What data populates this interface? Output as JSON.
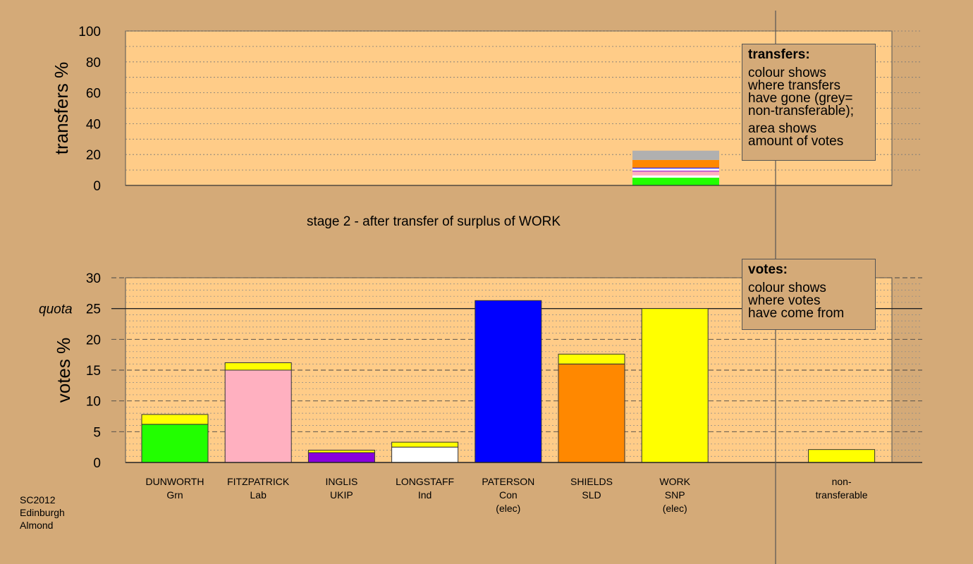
{
  "chart_data": [
    {
      "type": "bar",
      "stacked": true,
      "ylabel": "transfers %",
      "ylim": [
        0,
        100
      ],
      "yticks": [
        0,
        20,
        40,
        60,
        80,
        100
      ],
      "grid": "dotted",
      "bars": [
        {
          "category": "WORK",
          "segments": [
            {
              "value": 5,
              "color": "#22ff00"
            },
            {
              "value": 1.5,
              "color": "#ffffff"
            },
            {
              "value": 2.5,
              "color": "#ffb0c0"
            },
            {
              "value": 0.5,
              "color": "#8800dd"
            },
            {
              "value": 1.5,
              "color": "#ffffff"
            },
            {
              "value": 0.5,
              "color": "#0000ff"
            },
            {
              "value": 5,
              "color": "#ff8800"
            },
            {
              "value": 6,
              "color": "#b0b0b0"
            }
          ]
        }
      ],
      "legend": {
        "title": "transfers:",
        "paragraphs": [
          [
            "colour shows",
            "where transfers",
            "have gone (grey=",
            "non-transferable);"
          ],
          [
            "area shows",
            "amount of votes"
          ]
        ]
      }
    },
    {
      "type": "bar",
      "stacked": true,
      "title": "stage 2 - after transfer of surplus of WORK",
      "ylabel": "votes %",
      "ylim": [
        0,
        30
      ],
      "yticks": [
        0,
        5,
        10,
        15,
        20,
        25,
        30
      ],
      "quota": {
        "label": "quota",
        "value": 25
      },
      "categories": [
        {
          "lines": [
            "DUNWORTH",
            "Grn"
          ]
        },
        {
          "lines": [
            "FITZPATRICK",
            "Lab"
          ]
        },
        {
          "lines": [
            "INGLIS",
            "UKIP"
          ]
        },
        {
          "lines": [
            "LONGSTAFF",
            "Ind"
          ]
        },
        {
          "lines": [
            "PATERSON",
            "Con",
            "(elec)"
          ]
        },
        {
          "lines": [
            "SHIELDS",
            "SLD"
          ]
        },
        {
          "lines": [
            "WORK",
            "SNP",
            "(elec)"
          ]
        },
        {
          "lines": [
            "non-",
            "transferable"
          ]
        }
      ],
      "bars": [
        {
          "slot": 0,
          "segments": [
            {
              "value": 6.2,
              "color": "#22ff00"
            },
            {
              "value": 1.6,
              "color": "#ffff00"
            }
          ]
        },
        {
          "slot": 1,
          "segments": [
            {
              "value": 15.0,
              "color": "#ffb0c0"
            },
            {
              "value": 1.2,
              "color": "#ffff00"
            }
          ]
        },
        {
          "slot": 2,
          "segments": [
            {
              "value": 1.6,
              "color": "#8800dd"
            },
            {
              "value": 0.4,
              "color": "#ffff00"
            }
          ]
        },
        {
          "slot": 3,
          "segments": [
            {
              "value": 2.5,
              "color": "#ffffff"
            },
            {
              "value": 0.8,
              "color": "#ffff00"
            }
          ]
        },
        {
          "slot": 4,
          "segments": [
            {
              "value": 26.3,
              "color": "#0000ff"
            }
          ]
        },
        {
          "slot": 5,
          "segments": [
            {
              "value": 16.0,
              "color": "#ff8800"
            },
            {
              "value": 1.6,
              "color": "#ffff00"
            }
          ]
        },
        {
          "slot": 6,
          "segments": [
            {
              "value": 25.0,
              "color": "#ffff00"
            }
          ]
        },
        {
          "slot": 8,
          "segments": [
            {
              "value": 2.1,
              "color": "#ffff00"
            }
          ]
        }
      ],
      "legend": {
        "title": "votes:",
        "paragraphs": [
          [
            "colour shows",
            "where votes",
            "have come from"
          ]
        ]
      }
    }
  ],
  "credit": [
    "SC2012",
    "Edinburgh",
    "Almond"
  ],
  "colors": {
    "background": "#d4aa78",
    "plot_area": "#ffcc88"
  }
}
